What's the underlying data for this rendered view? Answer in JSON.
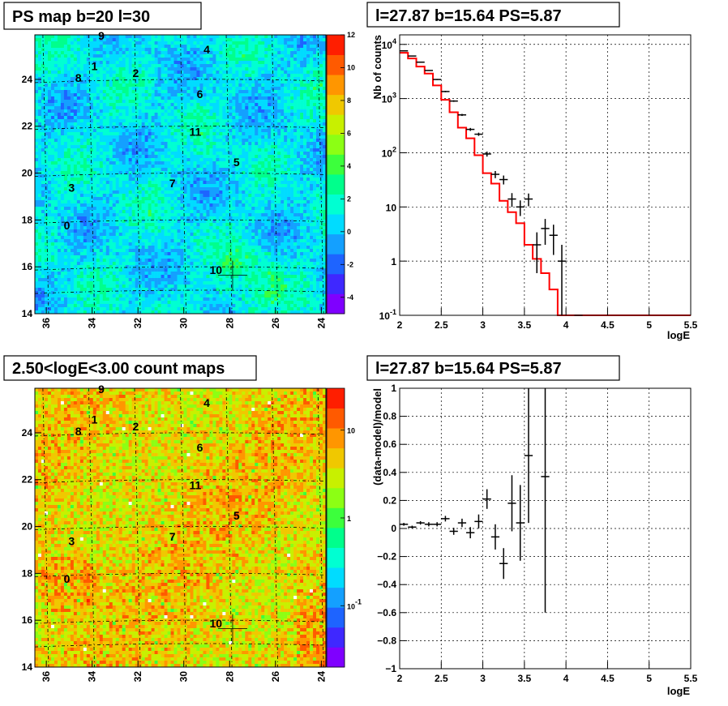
{
  "chart_data": [
    {
      "type": "heatmap",
      "title": "PS map b=20 l=30",
      "xticks": [
        36,
        34,
        32,
        30,
        28,
        26,
        24
      ],
      "yticks": [
        14,
        16,
        18,
        20,
        22,
        24
      ],
      "xlim": [
        36.5,
        23.8
      ],
      "ylim": [
        14,
        25.9
      ],
      "colorbar": {
        "ticks": [
          -4,
          -2,
          0,
          2,
          4,
          6,
          8,
          10,
          12
        ],
        "range": [
          -5,
          12
        ],
        "colors": [
          "#7f00ff",
          "#3f28ff",
          "#1e64ff",
          "#14a0ff",
          "#00dcff",
          "#00ffd2",
          "#00ff8c",
          "#3cff3c",
          "#8cff14",
          "#c8f000",
          "#f0c800",
          "#ff9600",
          "#ff5a00",
          "#ff1e00"
        ]
      },
      "sources": [
        {
          "label": "9",
          "l": 33.6,
          "b": 25.7
        },
        {
          "label": "1",
          "l": 33.9,
          "b": 24.4
        },
        {
          "label": "8",
          "l": 34.6,
          "b": 23.9
        },
        {
          "label": "2",
          "l": 32.1,
          "b": 24.1
        },
        {
          "label": "4",
          "l": 29.0,
          "b": 25.1
        },
        {
          "label": "6",
          "l": 29.3,
          "b": 23.2
        },
        {
          "label": "11",
          "l": 29.5,
          "b": 21.6
        },
        {
          "label": "5",
          "l": 27.7,
          "b": 20.3
        },
        {
          "label": "7",
          "l": 30.5,
          "b": 19.4
        },
        {
          "label": "3",
          "l": 34.9,
          "b": 19.2
        },
        {
          "label": "0",
          "l": 35.1,
          "b": 17.6
        },
        {
          "label": "10",
          "l": 28.6,
          "b": 15.7
        }
      ],
      "marker": {
        "l": 27.87,
        "b": 15.64
      }
    },
    {
      "type": "line",
      "title": "l=27.87 b=15.64 PS=5.87",
      "xlabel": "logE",
      "ylabel": "Nb of counts",
      "xlim": [
        2,
        5.5
      ],
      "ylim": [
        0.1,
        15000
      ],
      "log_y": true,
      "grid": true,
      "xticks": [
        "2",
        "2.5",
        "3",
        "3.5",
        "4",
        "4.5",
        "5",
        "5.5"
      ],
      "yticks": [
        {
          "v": 0.1,
          "t": "10",
          "e": "-1"
        },
        {
          "v": 1,
          "t": "1",
          "e": ""
        },
        {
          "v": 10,
          "t": "10",
          "e": ""
        },
        {
          "v": 100,
          "t": "10",
          "e": "2"
        },
        {
          "v": 1000,
          "t": "10",
          "e": "3"
        },
        {
          "v": 10000,
          "t": "10",
          "e": "4"
        }
      ],
      "series": [
        {
          "kind": "model_histogram",
          "color": "#ff0000",
          "bin_width": 0.1,
          "bin_edges_start": 2.0,
          "values": [
            7000,
            5500,
            3900,
            2900,
            1750,
            950,
            560,
            290,
            185,
            90,
            42,
            27,
            13,
            8,
            5,
            2,
            1.1,
            0.6,
            0.3,
            0.1,
            0.1,
            0.1,
            0.1,
            0.1,
            0.1,
            0.1,
            0.1,
            0.1,
            0.1,
            0.1,
            0.1,
            0.1,
            0.1,
            0.1,
            0.1
          ]
        },
        {
          "kind": "data_points",
          "color": "#000000",
          "x": [
            2.05,
            2.15,
            2.25,
            2.35,
            2.45,
            2.55,
            2.65,
            2.75,
            2.85,
            2.95,
            3.05,
            3.15,
            3.25,
            3.35,
            3.45,
            3.55,
            3.65,
            3.75,
            3.85,
            3.95,
            4.15
          ],
          "y": [
            7600,
            6100,
            4700,
            3300,
            2250,
            1350,
            900,
            500,
            270,
            220,
            95,
            40,
            32,
            14,
            10,
            14,
            2,
            4,
            3,
            1,
            0.1
          ],
          "err": [
            90,
            80,
            70,
            60,
            50,
            40,
            30,
            22,
            17,
            15,
            10,
            6,
            6,
            4,
            3.2,
            3.7,
            1.4,
            2,
            1.7,
            1,
            0
          ]
        }
      ]
    },
    {
      "type": "heatmap",
      "title": "2.50<logE<3.00 count maps",
      "xticks": [
        36,
        34,
        32,
        30,
        28,
        26,
        24
      ],
      "yticks": [
        14,
        16,
        18,
        20,
        22,
        24
      ],
      "xlim": [
        36.5,
        23.8
      ],
      "ylim": [
        14,
        25.9
      ],
      "colorbar": {
        "log": true,
        "ticks": [
          {
            "v": 10,
            "t": "10"
          },
          {
            "v": 1,
            "t": "1"
          },
          {
            "v": 0.1,
            "t": "10",
            "e": "-1"
          }
        ],
        "range": [
          0.02,
          30
        ],
        "colors": [
          "#7f00ff",
          "#3f28ff",
          "#1e64ff",
          "#14a0ff",
          "#00dcff",
          "#00ffd2",
          "#00ff8c",
          "#3cff3c",
          "#8cff14",
          "#c8f000",
          "#f0c800",
          "#ff9600",
          "#ff5a00",
          "#ff1e00"
        ]
      },
      "sources": [
        {
          "label": "9",
          "l": 33.6,
          "b": 25.7
        },
        {
          "label": "1",
          "l": 33.9,
          "b": 24.4
        },
        {
          "label": "8",
          "l": 34.6,
          "b": 23.9
        },
        {
          "label": "2",
          "l": 32.1,
          "b": 24.1
        },
        {
          "label": "4",
          "l": 29.0,
          "b": 25.1
        },
        {
          "label": "6",
          "l": 29.3,
          "b": 23.2
        },
        {
          "label": "11",
          "l": 29.5,
          "b": 21.6
        },
        {
          "label": "5",
          "l": 27.7,
          "b": 20.3
        },
        {
          "label": "7",
          "l": 30.5,
          "b": 19.4
        },
        {
          "label": "3",
          "l": 34.9,
          "b": 19.2
        },
        {
          "label": "0",
          "l": 35.1,
          "b": 17.6
        },
        {
          "label": "10",
          "l": 28.6,
          "b": 15.7
        }
      ],
      "marker": {
        "l": 27.87,
        "b": 15.64
      }
    },
    {
      "type": "scatter",
      "title": "l=27.87 b=15.64 PS=5.87",
      "xlabel": "logE",
      "ylabel": "(data-model)/model",
      "xlim": [
        2,
        5.5
      ],
      "ylim": [
        -1,
        1
      ],
      "grid": true,
      "xticks": [
        "2",
        "2.5",
        "3",
        "3.5",
        "4",
        "4.5",
        "5",
        "5.5"
      ],
      "yticks": [
        "-1",
        "-0.8",
        "-0.6",
        "-0.4",
        "-0.2",
        "0",
        "0.2",
        "0.4",
        "0.6",
        "0.8",
        "1"
      ],
      "series": [
        {
          "kind": "data_points",
          "color": "#000000",
          "x": [
            2.05,
            2.15,
            2.25,
            2.35,
            2.45,
            2.55,
            2.65,
            2.75,
            2.85,
            2.95,
            3.05,
            3.15,
            3.25,
            3.35,
            3.45,
            3.55,
            3.75
          ],
          "y": [
            0.03,
            0.01,
            0.04,
            0.03,
            0.03,
            0.07,
            -0.02,
            0.04,
            -0.03,
            0.05,
            0.21,
            -0.06,
            -0.25,
            0.18,
            0.04,
            0.52,
            0.37
          ],
          "err": [
            0.01,
            0.01,
            0.012,
            0.015,
            0.015,
            0.02,
            0.025,
            0.03,
            0.04,
            0.05,
            0.07,
            0.09,
            0.11,
            0.2,
            0.27,
            0.48,
            0.97
          ]
        }
      ]
    }
  ]
}
